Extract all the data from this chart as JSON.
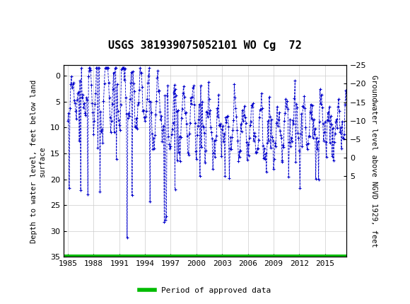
{
  "title": "USGS 381939075052101 WO Cg  72",
  "ylabel_left": "Depth to water level, feet below land\nsurface",
  "ylabel_right": "Groundwater level above NGVD 1929, feet",
  "ylim_left": [
    35,
    -2
  ],
  "ylim_right": [
    27,
    -7
  ],
  "yticks_left": [
    0,
    5,
    10,
    15,
    20,
    25,
    30,
    35
  ],
  "yticks_right": [
    5,
    0,
    -5,
    -10,
    -15,
    -20,
    -25
  ],
  "xticks": [
    1985,
    1988,
    1991,
    1994,
    1997,
    2000,
    2003,
    2006,
    2009,
    2012,
    2015
  ],
  "xlim": [
    1984.5,
    2017.5
  ],
  "plot_color": "#0000CC",
  "header_bg_color": "#1a6b3a",
  "header_text_color": "#ffffff",
  "background_color": "#ffffff",
  "grid_color": "#cccccc",
  "legend_line_color": "#00bb00",
  "legend_label": "Period of approved data",
  "approved_bar_color": "#00bb00",
  "approved_bar_y": 35.0,
  "figsize": [
    5.8,
    4.3
  ],
  "dpi": 100
}
